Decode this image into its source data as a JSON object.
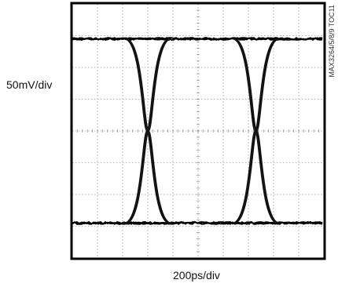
{
  "chart_data": {
    "type": "line",
    "subtype": "eye-diagram",
    "title": "",
    "xlabel": "200ps/div",
    "ylabel": "50mV/div",
    "figure_id": "MAX3264/5/8/9 TOC11",
    "x_divisions": 10,
    "y_divisions": 8,
    "grid": true,
    "series": [
      {
        "level": "high",
        "value_div": 2.9,
        "crossing_times_div": [
          3.0,
          7.3
        ]
      },
      {
        "level": "low",
        "value_div": -2.9,
        "crossing_times_div": [
          3.0,
          7.3
        ]
      }
    ],
    "crossing_level_div": 0.0
  }
}
